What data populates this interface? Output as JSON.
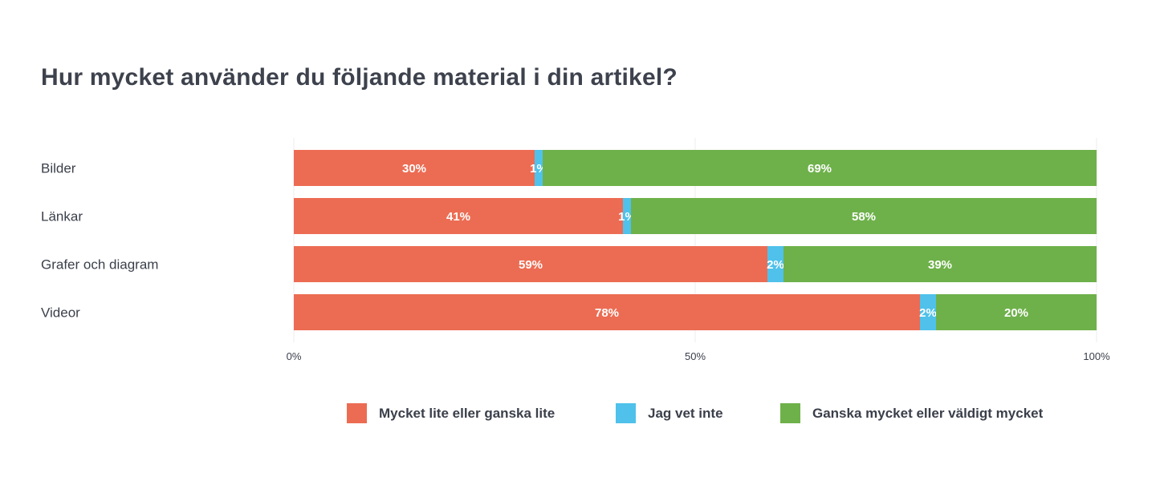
{
  "chart_data": {
    "type": "bar",
    "orientation": "horizontal",
    "stacked": true,
    "title": "Hur mycket använder du följande material i din artikel?",
    "categories": [
      "Bilder",
      "Länkar",
      "Grafer och diagram",
      "Videor"
    ],
    "series": [
      {
        "name": "Mycket lite eller ganska lite",
        "color": "#ec6c53",
        "values": [
          30,
          41,
          59,
          78
        ]
      },
      {
        "name": "Jag vet inte",
        "color": "#4fc1ea",
        "values": [
          1,
          1,
          2,
          2
        ]
      },
      {
        "name": "Ganska mycket eller väldigt mycket",
        "color": "#6eb14a",
        "values": [
          69,
          58,
          39,
          20
        ]
      }
    ],
    "xlim": [
      0,
      100
    ],
    "x_ticks": [
      "0%",
      "50%",
      "100%"
    ],
    "grid": true,
    "legend_position": "bottom"
  }
}
